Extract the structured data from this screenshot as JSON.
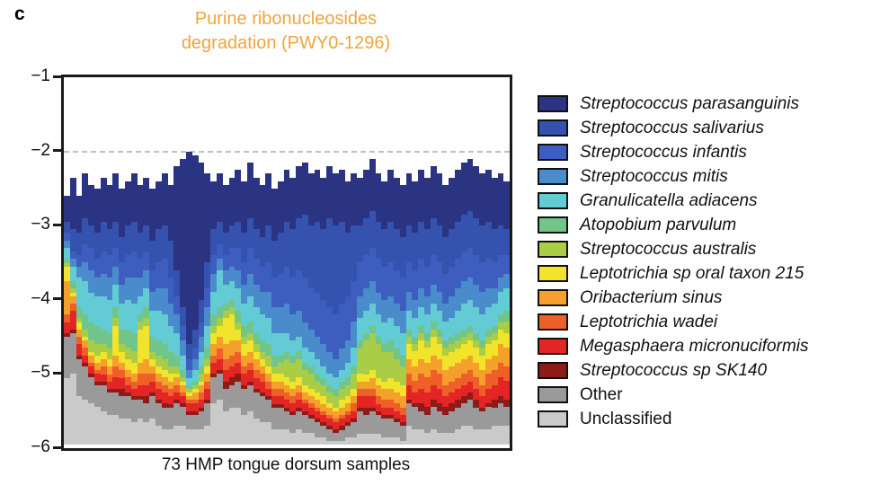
{
  "panel_label": "c",
  "title": {
    "line1": "Purine ribonucleosides",
    "line2": "degradation (PWY0-1296)",
    "color": "#F0A43E"
  },
  "x_axis": {
    "caption": "73 HMP tongue dorsum samples"
  },
  "y_axis": {
    "tick_labels": [
      "−1",
      "−2",
      "−3",
      "−4",
      "−5",
      "−6"
    ],
    "tick_values": [
      -1,
      -2,
      -3,
      -4,
      -5,
      -6
    ]
  },
  "chart_data": {
    "type": "bar",
    "subtype": "stacked-bar-log-scale",
    "title": "Purine ribonucleosides degradation (PWY0-1296)",
    "xlabel": "73 HMP tongue dorsum samples",
    "ylabel": "",
    "ylim": [
      -6,
      -1
    ],
    "grid": "dashed line at y = -2 only",
    "legend_position": "right",
    "n_samples": 73,
    "dashed_gridline_y": -2,
    "series": [
      {
        "name": "Streptococcus parasanguinis",
        "color": "#2B3383",
        "italic": true
      },
      {
        "name": "Streptococcus salivarius",
        "color": "#3452AE",
        "italic": true
      },
      {
        "name": "Streptococcus infantis",
        "color": "#3D5EBE",
        "italic": true
      },
      {
        "name": "Streptococcus mitis",
        "color": "#4A8CCB",
        "italic": true
      },
      {
        "name": "Granulicatella adiacens",
        "color": "#63CBD4",
        "italic": true
      },
      {
        "name": "Atopobium parvulum",
        "color": "#71C589",
        "italic": true
      },
      {
        "name": "Streptococcus australis",
        "color": "#A9CD46",
        "italic": true
      },
      {
        "name": "Leptotrichia sp oral taxon 215",
        "color": "#F2E32B",
        "italic": true
      },
      {
        "name": "Oribacterium sinus",
        "color": "#F4A02B",
        "italic": true
      },
      {
        "name": "Leptotrichia wadei",
        "color": "#EF5F2A",
        "italic": true
      },
      {
        "name": "Megasphaera micronuciformis",
        "color": "#E32526",
        "italic": true
      },
      {
        "name": "Streptococcus sp SK140",
        "color": "#8E1B16",
        "italic": true
      },
      {
        "name": "Other",
        "color": "#9A9A9A",
        "italic": false
      },
      {
        "name": "Unclassified",
        "color": "#CACACA",
        "italic": false
      }
    ],
    "boundaries_meaning": "per sample: 15 log10 stack boundaries, top of bar then bottom of each of the 14 series in legend order",
    "samples": [
      [
        -2.6,
        -2.95,
        -3.1,
        -3.2,
        -3.3,
        -3.45,
        -3.5,
        -3.55,
        -3.75,
        -4.2,
        -4.3,
        -4.45,
        -4.5,
        -5.05,
        -5.95
      ],
      [
        -2.35,
        -3.05,
        -3.35,
        -3.45,
        -3.55,
        -3.75,
        -3.85,
        -3.9,
        -3.95,
        -4.05,
        -4.15,
        -4.4,
        -4.45,
        -5.0,
        -5.95
      ],
      [
        -2.6,
        -3.1,
        -3.4,
        -3.55,
        -3.7,
        -4.1,
        -4.25,
        -4.3,
        -4.4,
        -4.5,
        -4.6,
        -4.75,
        -4.8,
        -5.3,
        -5.95
      ],
      [
        -2.3,
        -2.9,
        -3.25,
        -3.5,
        -3.75,
        -4.2,
        -4.4,
        -4.5,
        -4.55,
        -4.65,
        -4.75,
        -4.85,
        -4.9,
        -5.35,
        -5.95
      ],
      [
        -2.45,
        -3.0,
        -3.3,
        -3.6,
        -3.9,
        -4.3,
        -4.55,
        -4.7,
        -4.75,
        -4.85,
        -4.9,
        -5.0,
        -5.05,
        -5.4,
        -5.95
      ],
      [
        -2.5,
        -3.1,
        -3.45,
        -3.7,
        -3.95,
        -4.35,
        -4.6,
        -4.75,
        -4.85,
        -4.95,
        -5.0,
        -5.1,
        -5.15,
        -5.45,
        -5.95
      ],
      [
        -2.35,
        -2.95,
        -3.35,
        -3.65,
        -3.95,
        -4.4,
        -4.6,
        -4.7,
        -4.8,
        -4.9,
        -5.0,
        -5.1,
        -5.15,
        -5.5,
        -5.95
      ],
      [
        -2.45,
        -3.05,
        -3.4,
        -3.7,
        -4.0,
        -4.45,
        -4.65,
        -4.8,
        -4.9,
        -5.0,
        -5.1,
        -5.2,
        -5.25,
        -5.55,
        -5.95
      ],
      [
        -2.3,
        -2.95,
        -3.3,
        -3.55,
        -3.8,
        -4.1,
        -4.25,
        -4.35,
        -4.75,
        -4.9,
        -5.05,
        -5.2,
        -5.25,
        -5.55,
        -5.95
      ],
      [
        -2.5,
        -3.15,
        -3.5,
        -3.8,
        -4.05,
        -4.4,
        -4.6,
        -4.7,
        -4.85,
        -4.95,
        -5.05,
        -5.2,
        -5.3,
        -5.6,
        -5.95
      ],
      [
        -2.4,
        -3.0,
        -3.4,
        -3.7,
        -4.0,
        -4.4,
        -4.65,
        -4.8,
        -4.95,
        -5.05,
        -5.15,
        -5.25,
        -5.3,
        -5.6,
        -5.95
      ],
      [
        -2.3,
        -2.95,
        -3.35,
        -3.7,
        -4.05,
        -4.45,
        -4.7,
        -4.85,
        -5.0,
        -5.1,
        -5.2,
        -5.3,
        -5.35,
        -5.65,
        -5.95
      ],
      [
        -2.45,
        -3.1,
        -3.45,
        -3.7,
        -3.95,
        -4.2,
        -4.3,
        -4.4,
        -4.85,
        -5.0,
        -5.15,
        -5.3,
        -5.35,
        -5.6,
        -5.95
      ],
      [
        -2.35,
        -3.0,
        -3.35,
        -3.6,
        -3.85,
        -4.1,
        -4.25,
        -4.35,
        -4.8,
        -5.0,
        -5.15,
        -5.3,
        -5.4,
        -5.65,
        -5.95
      ],
      [
        -2.5,
        -3.2,
        -3.6,
        -3.9,
        -4.15,
        -4.5,
        -4.7,
        -4.8,
        -4.9,
        -5.0,
        -5.1,
        -5.25,
        -5.3,
        -5.6,
        -5.95
      ],
      [
        -2.4,
        -3.05,
        -3.5,
        -3.85,
        -4.15,
        -4.55,
        -4.75,
        -4.9,
        -5.0,
        -5.1,
        -5.2,
        -5.35,
        -5.4,
        -5.7,
        -5.95
      ],
      [
        -2.3,
        -3.0,
        -3.45,
        -3.85,
        -4.2,
        -4.6,
        -4.8,
        -4.95,
        -5.05,
        -5.15,
        -5.25,
        -5.4,
        -5.45,
        -5.75,
        -5.95
      ],
      [
        -2.45,
        -3.2,
        -3.7,
        -4.05,
        -4.35,
        -4.7,
        -4.9,
        -5.0,
        -5.1,
        -5.2,
        -5.3,
        -5.4,
        -5.45,
        -5.75,
        -5.95
      ],
      [
        -2.2,
        -3.6,
        -3.95,
        -4.2,
        -4.45,
        -4.75,
        -4.9,
        -5.0,
        -5.05,
        -5.15,
        -5.25,
        -5.35,
        -5.4,
        -5.7,
        -5.95
      ],
      [
        -2.1,
        -4.1,
        -4.35,
        -4.55,
        -4.75,
        -4.95,
        -5.05,
        -5.1,
        -5.15,
        -5.25,
        -5.3,
        -5.4,
        -5.45,
        -5.7,
        -5.95
      ],
      [
        -2.0,
        -4.6,
        -4.8,
        -4.95,
        -5.05,
        -5.15,
        -5.2,
        -5.25,
        -5.3,
        -5.35,
        -5.4,
        -5.5,
        -5.55,
        -5.75,
        -5.95
      ],
      [
        -2.05,
        -4.4,
        -4.65,
        -4.8,
        -4.95,
        -5.1,
        -5.15,
        -5.2,
        -5.25,
        -5.35,
        -5.4,
        -5.5,
        -5.55,
        -5.75,
        -5.95
      ],
      [
        -2.15,
        -4.0,
        -4.3,
        -4.5,
        -4.7,
        -4.9,
        -5.0,
        -5.1,
        -5.15,
        -5.25,
        -5.35,
        -5.45,
        -5.5,
        -5.75,
        -5.95
      ],
      [
        -2.3,
        -3.5,
        -3.85,
        -4.1,
        -4.35,
        -4.65,
        -4.8,
        -4.9,
        -5.0,
        -5.1,
        -5.2,
        -5.35,
        -5.4,
        -5.7,
        -5.95
      ],
      [
        -2.4,
        -3.05,
        -3.4,
        -3.65,
        -3.9,
        -4.2,
        -4.35,
        -4.45,
        -4.6,
        -4.75,
        -4.85,
        -5.0,
        -5.05,
        -5.4,
        -5.95
      ],
      [
        -2.3,
        -2.95,
        -3.25,
        -3.45,
        -3.6,
        -4.1,
        -4.25,
        -4.35,
        -4.5,
        -4.65,
        -4.8,
        -4.95,
        -5.0,
        -5.35,
        -5.95
      ],
      [
        -2.45,
        -3.1,
        -3.4,
        -3.6,
        -3.8,
        -4.05,
        -4.15,
        -4.25,
        -4.6,
        -4.8,
        -4.95,
        -5.1,
        -5.2,
        -5.5,
        -5.95
      ],
      [
        -2.35,
        -3.0,
        -3.3,
        -3.55,
        -3.75,
        -4.0,
        -4.1,
        -4.2,
        -4.55,
        -4.75,
        -4.9,
        -5.05,
        -5.15,
        -5.45,
        -5.95
      ],
      [
        -2.25,
        -2.95,
        -3.3,
        -3.6,
        -3.85,
        -4.15,
        -4.3,
        -4.4,
        -4.55,
        -4.7,
        -4.85,
        -5.0,
        -5.1,
        -5.45,
        -5.95
      ],
      [
        -2.4,
        -3.1,
        -3.5,
        -3.8,
        -4.05,
        -4.35,
        -4.5,
        -4.6,
        -4.75,
        -4.9,
        -5.0,
        -5.15,
        -5.2,
        -5.55,
        -5.95
      ],
      [
        -2.15,
        -2.9,
        -3.3,
        -3.65,
        -3.95,
        -4.3,
        -4.45,
        -4.55,
        -4.7,
        -4.85,
        -4.95,
        -5.1,
        -5.15,
        -5.5,
        -5.95
      ],
      [
        -2.35,
        -3.05,
        -3.45,
        -3.8,
        -4.1,
        -4.45,
        -4.6,
        -4.7,
        -4.8,
        -4.95,
        -5.05,
        -5.2,
        -5.25,
        -5.6,
        -5.95
      ],
      [
        -2.45,
        -3.15,
        -3.55,
        -3.9,
        -4.2,
        -4.55,
        -4.7,
        -4.8,
        -4.9,
        -5.0,
        -5.1,
        -5.25,
        -5.3,
        -5.65,
        -5.95
      ],
      [
        -2.3,
        -3.0,
        -3.5,
        -3.9,
        -4.25,
        -4.6,
        -4.75,
        -4.9,
        -5.0,
        -5.1,
        -5.2,
        -5.3,
        -5.35,
        -5.65,
        -5.95
      ],
      [
        -2.5,
        -3.2,
        -3.7,
        -4.1,
        -4.45,
        -4.75,
        -4.9,
        -5.0,
        -5.1,
        -5.2,
        -5.3,
        -5.4,
        -5.45,
        -5.75,
        -5.95
      ],
      [
        -2.4,
        -3.1,
        -3.65,
        -4.1,
        -4.45,
        -4.75,
        -4.85,
        -5.0,
        -5.1,
        -5.2,
        -5.3,
        -5.4,
        -5.45,
        -5.75,
        -5.95
      ],
      [
        -2.25,
        -2.95,
        -3.55,
        -4.05,
        -4.45,
        -4.7,
        -4.8,
        -5.05,
        -5.15,
        -5.25,
        -5.35,
        -5.45,
        -5.5,
        -5.75,
        -5.95
      ],
      [
        -2.35,
        -3.05,
        -3.7,
        -4.2,
        -4.55,
        -4.75,
        -4.85,
        -5.1,
        -5.2,
        -5.3,
        -5.4,
        -5.5,
        -5.55,
        -5.8,
        -5.95
      ],
      [
        -2.2,
        -2.9,
        -3.6,
        -4.15,
        -4.5,
        -4.7,
        -4.8,
        -5.05,
        -5.15,
        -5.25,
        -5.35,
        -5.45,
        -5.5,
        -5.75,
        -5.95
      ],
      [
        -2.15,
        -2.85,
        -3.7,
        -4.3,
        -4.65,
        -4.85,
        -4.95,
        -5.15,
        -5.25,
        -5.35,
        -5.4,
        -5.5,
        -5.55,
        -5.8,
        -5.95
      ],
      [
        -2.3,
        -3.0,
        -3.85,
        -4.4,
        -4.7,
        -4.9,
        -5.0,
        -5.2,
        -5.3,
        -5.4,
        -5.45,
        -5.55,
        -5.6,
        -5.8,
        -5.95
      ],
      [
        -2.25,
        -2.95,
        -3.9,
        -4.5,
        -4.8,
        -5.0,
        -5.1,
        -5.25,
        -5.35,
        -5.45,
        -5.5,
        -5.6,
        -5.65,
        -5.85,
        -5.95
      ],
      [
        -2.35,
        -3.05,
        -4.0,
        -4.6,
        -4.9,
        -5.05,
        -5.15,
        -5.3,
        -5.4,
        -5.5,
        -5.55,
        -5.65,
        -5.7,
        -5.85,
        -5.95
      ],
      [
        -2.2,
        -2.9,
        -4.1,
        -4.7,
        -5.0,
        -5.15,
        -5.25,
        -5.4,
        -5.45,
        -5.55,
        -5.6,
        -5.7,
        -5.75,
        -5.9,
        -5.95
      ],
      [
        -2.3,
        -3.0,
        -4.2,
        -4.8,
        -5.05,
        -5.2,
        -5.3,
        -5.45,
        -5.5,
        -5.6,
        -5.65,
        -5.75,
        -5.8,
        -5.9,
        -5.95
      ],
      [
        -2.25,
        -2.95,
        -4.05,
        -4.65,
        -4.95,
        -5.1,
        -5.2,
        -5.35,
        -5.45,
        -5.55,
        -5.6,
        -5.7,
        -5.75,
        -5.9,
        -5.95
      ],
      [
        -2.4,
        -3.1,
        -3.95,
        -4.55,
        -4.85,
        -5.05,
        -5.15,
        -5.3,
        -5.4,
        -5.5,
        -5.55,
        -5.65,
        -5.7,
        -5.85,
        -5.95
      ],
      [
        -2.3,
        -3.0,
        -3.75,
        -4.3,
        -4.65,
        -4.9,
        -5.0,
        -5.2,
        -5.3,
        -5.4,
        -5.5,
        -5.6,
        -5.65,
        -5.85,
        -5.95
      ],
      [
        -2.35,
        -3.0,
        -3.5,
        -3.95,
        -4.25,
        -4.55,
        -4.65,
        -5.0,
        -5.1,
        -5.2,
        -5.3,
        -5.45,
        -5.5,
        -5.8,
        -5.95
      ],
      [
        -2.25,
        -2.9,
        -3.4,
        -3.85,
        -4.15,
        -4.45,
        -4.55,
        -5.0,
        -5.1,
        -5.2,
        -5.3,
        -5.45,
        -5.55,
        -5.8,
        -5.95
      ],
      [
        -2.1,
        -2.8,
        -3.3,
        -3.75,
        -4.05,
        -4.35,
        -4.45,
        -4.95,
        -5.05,
        -5.2,
        -5.3,
        -5.45,
        -5.5,
        -5.8,
        -5.95
      ],
      [
        -2.3,
        -2.95,
        -3.45,
        -3.9,
        -4.2,
        -4.5,
        -4.6,
        -5.05,
        -5.15,
        -5.3,
        -5.4,
        -5.5,
        -5.55,
        -5.8,
        -5.95
      ],
      [
        -2.4,
        -3.05,
        -3.55,
        -4.0,
        -4.3,
        -4.6,
        -4.7,
        -5.1,
        -5.2,
        -5.35,
        -5.45,
        -5.55,
        -5.6,
        -5.85,
        -5.95
      ],
      [
        -2.25,
        -2.95,
        -3.5,
        -3.95,
        -4.25,
        -4.55,
        -4.7,
        -5.05,
        -5.2,
        -5.35,
        -5.45,
        -5.55,
        -5.6,
        -5.85,
        -5.95
      ],
      [
        -2.35,
        -3.05,
        -3.6,
        -4.05,
        -4.35,
        -4.65,
        -4.8,
        -5.1,
        -5.25,
        -5.4,
        -5.5,
        -5.6,
        -5.65,
        -5.85,
        -5.95
      ],
      [
        -2.45,
        -3.15,
        -3.7,
        -4.15,
        -4.45,
        -4.75,
        -4.9,
        -5.15,
        -5.3,
        -5.45,
        -5.55,
        -5.65,
        -5.7,
        -5.9,
        -5.95
      ],
      [
        -2.3,
        -3.0,
        -3.5,
        -3.9,
        -4.15,
        -4.4,
        -4.5,
        -4.6,
        -4.8,
        -5.0,
        -5.15,
        -5.35,
        -5.4,
        -5.7,
        -5.95
      ],
      [
        -2.4,
        -3.1,
        -3.6,
        -4.0,
        -4.25,
        -4.5,
        -4.6,
        -4.7,
        -4.9,
        -5.1,
        -5.25,
        -5.4,
        -5.45,
        -5.75,
        -5.95
      ],
      [
        -2.25,
        -2.95,
        -3.45,
        -3.85,
        -4.1,
        -4.35,
        -4.45,
        -4.55,
        -4.8,
        -5.0,
        -5.2,
        -5.4,
        -5.5,
        -5.75,
        -5.95
      ],
      [
        -2.35,
        -3.05,
        -3.55,
        -3.95,
        -4.2,
        -4.45,
        -4.55,
        -4.65,
        -4.85,
        -5.05,
        -5.25,
        -5.45,
        -5.55,
        -5.8,
        -5.95
      ],
      [
        -2.2,
        -2.9,
        -3.4,
        -3.8,
        -4.05,
        -4.3,
        -4.4,
        -4.5,
        -4.75,
        -4.95,
        -5.15,
        -5.35,
        -5.45,
        -5.75,
        -5.95
      ],
      [
        -2.3,
        -3.0,
        -3.5,
        -3.9,
        -4.15,
        -4.4,
        -4.5,
        -4.6,
        -4.8,
        -5.0,
        -5.2,
        -5.4,
        -5.5,
        -5.8,
        -5.95
      ],
      [
        -2.45,
        -3.15,
        -3.65,
        -4.05,
        -4.3,
        -4.55,
        -4.65,
        -4.75,
        -4.95,
        -5.15,
        -5.3,
        -5.45,
        -5.55,
        -5.8,
        -5.95
      ],
      [
        -2.35,
        -3.05,
        -3.55,
        -3.95,
        -4.25,
        -4.5,
        -4.6,
        -4.7,
        -4.9,
        -5.1,
        -5.25,
        -5.4,
        -5.5,
        -5.8,
        -5.95
      ],
      [
        -2.25,
        -2.95,
        -3.45,
        -3.85,
        -4.15,
        -4.45,
        -4.55,
        -4.65,
        -4.85,
        -5.05,
        -5.2,
        -5.35,
        -5.45,
        -5.75,
        -5.95
      ],
      [
        -2.15,
        -2.85,
        -3.35,
        -3.75,
        -4.05,
        -4.4,
        -4.5,
        -4.6,
        -4.8,
        -5.0,
        -5.15,
        -5.3,
        -5.4,
        -5.7,
        -5.95
      ],
      [
        -2.1,
        -2.8,
        -3.3,
        -3.7,
        -4.0,
        -4.35,
        -4.45,
        -4.55,
        -4.75,
        -4.95,
        -5.1,
        -5.25,
        -5.35,
        -5.7,
        -5.95
      ],
      [
        -2.2,
        -2.9,
        -3.4,
        -3.8,
        -4.1,
        -4.45,
        -4.55,
        -4.65,
        -4.85,
        -5.05,
        -5.2,
        -5.35,
        -5.45,
        -5.75,
        -5.95
      ],
      [
        -2.3,
        -3.0,
        -3.5,
        -3.9,
        -4.2,
        -4.55,
        -4.65,
        -4.75,
        -4.95,
        -5.15,
        -5.3,
        -5.45,
        -5.5,
        -5.75,
        -5.95
      ],
      [
        -2.25,
        -2.95,
        -3.45,
        -3.85,
        -4.1,
        -4.4,
        -4.5,
        -4.6,
        -4.8,
        -5.0,
        -5.2,
        -5.4,
        -5.45,
        -5.75,
        -5.95
      ],
      [
        -2.35,
        -3.05,
        -3.5,
        -3.85,
        -4.05,
        -4.35,
        -4.45,
        -4.55,
        -4.75,
        -4.95,
        -5.15,
        -5.35,
        -5.45,
        -5.7,
        -5.95
      ],
      [
        -2.3,
        -3.0,
        -3.4,
        -3.7,
        -3.9,
        -4.2,
        -4.3,
        -4.4,
        -4.6,
        -4.85,
        -5.05,
        -5.3,
        -5.4,
        -5.7,
        -5.95
      ],
      [
        -2.4,
        -3.05,
        -3.4,
        -3.65,
        -3.85,
        -4.15,
        -4.3,
        -4.45,
        -4.65,
        -4.9,
        -5.1,
        -5.35,
        -5.45,
        -5.7,
        -5.95
      ]
    ]
  },
  "colors": {
    "title": "#F0A43E",
    "axis": "#1A1A1A",
    "dashed_gridline": "#BFBFBF",
    "background": "#FFFFFF"
  }
}
